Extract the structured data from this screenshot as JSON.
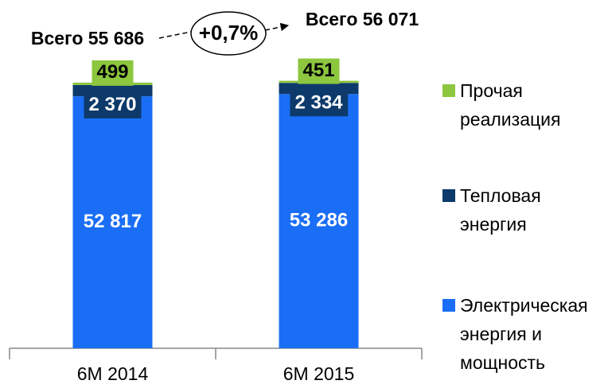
{
  "chart_data": {
    "type": "stacked-bar",
    "categories": [
      "6M 2014",
      "6M 2015"
    ],
    "ylim": [
      0,
      60000
    ],
    "legend": "right",
    "series": [
      {
        "name": "Электрическая энергия и мощность",
        "color": "#1a6ef5",
        "values": [
          52817,
          53286
        ],
        "value_labels": [
          "52 817",
          "53 286"
        ]
      },
      {
        "name": "Тепловая энергия",
        "color": "#0d3a6b",
        "values": [
          2370,
          2334
        ],
        "value_labels": [
          "2 370",
          "2 334"
        ]
      },
      {
        "name": "Прочая реализация",
        "color": "#8dc63f",
        "values": [
          499,
          451
        ],
        "value_labels": [
          "499",
          "451"
        ]
      }
    ],
    "annotations": [
      "Всего 55 686",
      "+0,7%",
      "Всего 56 071"
    ]
  }
}
